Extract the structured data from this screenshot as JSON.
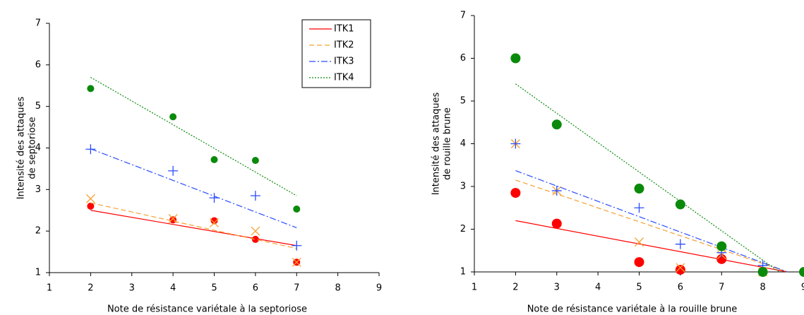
{
  "chart_data": [
    {
      "type": "scatter",
      "x_label": "Note de résistance variétale à la septoriose",
      "y_label": [
        "Intensité des attaques",
        "de septoriose"
      ],
      "xlim": [
        1,
        9
      ],
      "xticks": [
        1,
        2,
        3,
        4,
        5,
        6,
        7,
        8,
        9
      ],
      "ylim": [
        1,
        7
      ],
      "yticks": [
        1,
        2,
        3,
        4,
        5,
        6,
        7
      ],
      "legend": "top-right",
      "series": [
        {
          "name": "ITK1",
          "color": "#ff0000",
          "marker": "circle",
          "line_style": "solid",
          "x": [
            2,
            4,
            5,
            6,
            7
          ],
          "values": [
            2.6,
            2.27,
            2.25,
            1.8,
            1.25
          ],
          "trend_x": [
            2,
            7
          ],
          "trend_y": [
            2.5,
            1.65
          ]
        },
        {
          "name": "ITK2",
          "color": "#f5a030",
          "marker": "x",
          "line_style": "dashed",
          "x": [
            2,
            4,
            5,
            6,
            7
          ],
          "values": [
            2.78,
            2.3,
            2.2,
            2.0,
            1.25
          ],
          "trend_x": [
            2,
            7
          ],
          "trend_y": [
            2.68,
            1.58
          ]
        },
        {
          "name": "ITK3",
          "color": "#2a4cff",
          "marker": "plus",
          "line_style": "dashdot",
          "x": [
            2,
            4,
            5,
            6,
            7
          ],
          "values": [
            3.97,
            3.45,
            2.8,
            2.85,
            1.65
          ],
          "trend_x": [
            2,
            7
          ],
          "trend_y": [
            3.98,
            2.08
          ]
        },
        {
          "name": "ITK4",
          "color": "#0a8a0a",
          "marker": "circle",
          "line_style": "dotted",
          "x": [
            2,
            4,
            5,
            6,
            7
          ],
          "values": [
            5.43,
            4.75,
            3.72,
            3.7,
            2.53
          ],
          "trend_x": [
            2,
            7
          ],
          "trend_y": [
            5.7,
            2.85
          ]
        }
      ]
    },
    {
      "type": "scatter",
      "x_label": "Note de résistance variétale à la rouille brune",
      "y_label": [
        "Intensité des attaques",
        "de rouille brune"
      ],
      "xlim": [
        1,
        9
      ],
      "xticks": [
        1,
        2,
        3,
        4,
        5,
        6,
        7,
        8,
        9
      ],
      "ylim": [
        1,
        7
      ],
      "yticks": [
        1,
        2,
        3,
        4,
        5,
        6,
        7
      ],
      "series": [
        {
          "color": "#ff0000",
          "marker": "circle",
          "line_style": "solid",
          "x": [
            2,
            3,
            5,
            6,
            7
          ],
          "values": [
            2.85,
            2.13,
            1.23,
            1.05,
            1.3
          ],
          "trend_x": [
            2,
            8.6
          ],
          "trend_y": [
            2.2,
            1.0
          ]
        },
        {
          "color": "#f5a030",
          "marker": "x",
          "line_style": "dashed",
          "x": [
            2,
            3,
            5,
            6,
            7,
            8
          ],
          "values": [
            4.0,
            2.9,
            1.7,
            1.1,
            1.4,
            1.0
          ],
          "trend_x": [
            2,
            8.6
          ],
          "trend_y": [
            3.15,
            1.0
          ]
        },
        {
          "color": "#2a4cff",
          "marker": "plus",
          "line_style": "dashdot",
          "x": [
            2,
            3,
            5,
            6,
            7,
            8
          ],
          "values": [
            4.0,
            2.9,
            2.5,
            1.65,
            1.45,
            1.15
          ],
          "trend_x": [
            2,
            8.6
          ],
          "trend_y": [
            3.37,
            1.0
          ]
        },
        {
          "color": "#0a8a0a",
          "marker": "circle",
          "line_style": "dotted",
          "x": [
            2,
            3,
            5,
            6,
            7,
            8,
            9
          ],
          "values": [
            6.0,
            4.45,
            2.95,
            2.58,
            1.6,
            1.0,
            1.0
          ],
          "trend_x": [
            2,
            8.4
          ],
          "trend_y": [
            5.4,
            1.0
          ]
        }
      ]
    }
  ]
}
